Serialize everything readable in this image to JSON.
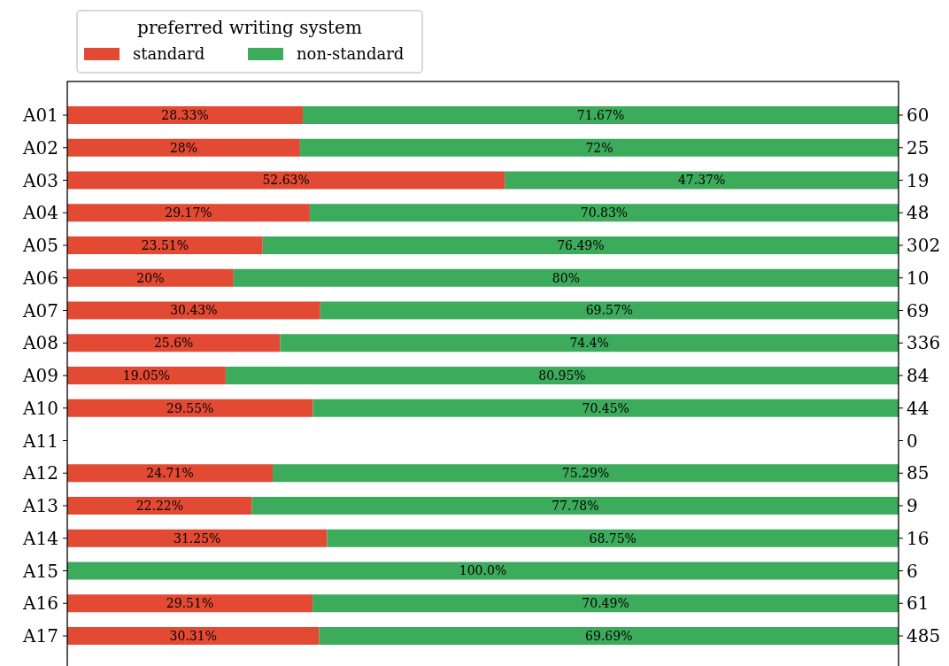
{
  "chart_data": {
    "type": "bar",
    "orientation": "horizontal",
    "stacked": true,
    "legend_title": "preferred writing system",
    "legend": "top left",
    "tick_labels": "y",
    "xlim": [
      0,
      100
    ],
    "categories": [
      "A01",
      "A02",
      "A03",
      "A04",
      "A05",
      "A06",
      "A07",
      "A08",
      "A09",
      "A10",
      "A11",
      "A12",
      "A13",
      "A14",
      "A15",
      "A16",
      "A17"
    ],
    "y2_categories": [
      "60",
      "25",
      "19",
      "48",
      "302",
      "10",
      "69",
      "336",
      "84",
      "44",
      "0",
      "85",
      "9",
      "16",
      "6",
      "61",
      "485"
    ],
    "series": [
      {
        "name": "standard",
        "color": "#e34a33",
        "values": [
          28.33,
          28,
          52.63,
          29.17,
          23.51,
          20,
          30.43,
          25.6,
          19.05,
          29.55,
          null,
          24.71,
          22.22,
          31.25,
          0,
          29.51,
          30.31
        ],
        "value_labels": [
          "28.33%",
          "28%",
          "52.63%",
          "29.17%",
          "23.51%",
          "20%",
          "30.43%",
          "25.6%",
          "19.05%",
          "29.55%",
          null,
          "24.71%",
          "22.22%",
          "31.25%",
          null,
          "29.51%",
          "30.31%"
        ]
      },
      {
        "name": "non-standard",
        "color": "#3dab5c",
        "values": [
          71.67,
          72,
          47.37,
          70.83,
          76.49,
          80,
          69.57,
          74.4,
          80.95,
          70.45,
          null,
          75.29,
          77.78,
          68.75,
          100,
          70.49,
          69.69
        ],
        "value_labels": [
          "71.67%",
          "72%",
          "47.37%",
          "70.83%",
          "76.49%",
          "80%",
          "69.57%",
          "74.4%",
          "80.95%",
          "70.45%",
          null,
          "75.29%",
          "77.78%",
          "68.75%",
          "100.0%",
          "70.49%",
          "69.69%"
        ]
      }
    ]
  }
}
